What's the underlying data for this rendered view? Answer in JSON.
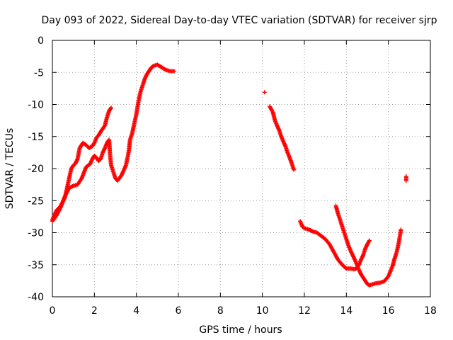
{
  "chart_data": {
    "type": "scatter",
    "title": "Day 093 of 2022, Sidereal Day-to-day VTEC variation (SDTVAR) for receiver sjrp",
    "xlabel": "GPS time / hours",
    "ylabel": "SDTVAR / TECUs",
    "xlim": [
      0,
      18
    ],
    "ylim": [
      -40,
      0
    ],
    "xticks": [
      0,
      2,
      4,
      6,
      8,
      10,
      12,
      14,
      16,
      18
    ],
    "yticks": [
      0,
      -5,
      -10,
      -15,
      -20,
      -25,
      -30,
      -35,
      -40
    ],
    "grid": true,
    "marker": "+",
    "series_color": "#ff0000",
    "segments": [
      {
        "name": "track-1",
        "points": [
          [
            0.0,
            -28.0
          ],
          [
            0.1,
            -27.2
          ],
          [
            0.2,
            -26.5
          ],
          [
            0.3,
            -26.2
          ],
          [
            0.4,
            -25.8
          ],
          [
            0.6,
            -24.5
          ],
          [
            0.7,
            -23.0
          ],
          [
            0.8,
            -21.5
          ],
          [
            0.9,
            -20.0
          ],
          [
            1.0,
            -19.5
          ],
          [
            1.1,
            -19.2
          ],
          [
            1.2,
            -18.5
          ],
          [
            1.3,
            -16.8
          ],
          [
            1.45,
            -16.0
          ],
          [
            1.6,
            -16.3
          ],
          [
            1.75,
            -16.8
          ],
          [
            1.9,
            -16.5
          ],
          [
            2.0,
            -16.0
          ],
          [
            2.1,
            -15.2
          ],
          [
            2.2,
            -14.8
          ],
          [
            2.35,
            -14.0
          ],
          [
            2.5,
            -13.3
          ],
          [
            2.6,
            -12.0
          ],
          [
            2.7,
            -11.0
          ],
          [
            2.8,
            -10.5
          ]
        ]
      },
      {
        "name": "track-2",
        "points": [
          [
            0.0,
            -28.2
          ],
          [
            0.2,
            -27.3
          ],
          [
            0.4,
            -26.0
          ],
          [
            0.6,
            -24.3
          ],
          [
            0.8,
            -23.0
          ],
          [
            1.0,
            -22.7
          ],
          [
            1.2,
            -22.5
          ],
          [
            1.4,
            -21.5
          ],
          [
            1.6,
            -19.8
          ],
          [
            1.7,
            -19.5
          ],
          [
            1.8,
            -19.3
          ],
          [
            1.9,
            -18.5
          ],
          [
            2.0,
            -18.0
          ],
          [
            2.1,
            -18.3
          ],
          [
            2.2,
            -18.8
          ],
          [
            2.3,
            -18.5
          ],
          [
            2.4,
            -17.5
          ],
          [
            2.5,
            -16.8
          ],
          [
            2.6,
            -16.0
          ],
          [
            2.7,
            -15.5
          ],
          [
            2.75,
            -18.0
          ],
          [
            2.8,
            -19.5
          ],
          [
            2.9,
            -20.5
          ],
          [
            3.0,
            -21.5
          ],
          [
            3.1,
            -21.9
          ],
          [
            3.3,
            -21.0
          ],
          [
            3.5,
            -19.5
          ],
          [
            3.6,
            -18.0
          ],
          [
            3.65,
            -17.0
          ],
          [
            3.7,
            -15.5
          ],
          [
            3.8,
            -14.5
          ],
          [
            3.9,
            -13.0
          ],
          [
            4.0,
            -11.5
          ],
          [
            4.1,
            -9.5
          ],
          [
            4.2,
            -8.0
          ],
          [
            4.3,
            -7.0
          ],
          [
            4.4,
            -6.0
          ],
          [
            4.5,
            -5.3
          ],
          [
            4.6,
            -4.8
          ],
          [
            4.7,
            -4.3
          ],
          [
            4.8,
            -4.0
          ],
          [
            4.9,
            -3.9
          ],
          [
            5.0,
            -3.8
          ],
          [
            5.2,
            -4.2
          ],
          [
            5.4,
            -4.6
          ],
          [
            5.6,
            -4.8
          ],
          [
            5.8,
            -4.8
          ]
        ]
      },
      {
        "name": "isolated-1",
        "points": [
          [
            10.1,
            -8.1
          ]
        ]
      },
      {
        "name": "track-3",
        "points": [
          [
            10.35,
            -10.3
          ],
          [
            10.5,
            -11.2
          ],
          [
            10.6,
            -12.5
          ],
          [
            10.7,
            -13.3
          ],
          [
            10.8,
            -14.0
          ],
          [
            10.9,
            -15.0
          ],
          [
            11.0,
            -15.8
          ],
          [
            11.1,
            -16.5
          ],
          [
            11.2,
            -17.5
          ],
          [
            11.3,
            -18.3
          ],
          [
            11.4,
            -19.2
          ],
          [
            11.5,
            -20.2
          ]
        ]
      },
      {
        "name": "track-4",
        "points": [
          [
            11.8,
            -28.2
          ],
          [
            11.9,
            -29.0
          ],
          [
            12.0,
            -29.3
          ],
          [
            12.2,
            -29.5
          ],
          [
            12.4,
            -29.8
          ],
          [
            12.6,
            -30.0
          ],
          [
            12.8,
            -30.5
          ],
          [
            13.0,
            -31.0
          ],
          [
            13.2,
            -31.8
          ],
          [
            13.4,
            -33.0
          ],
          [
            13.6,
            -34.2
          ],
          [
            13.8,
            -35.0
          ],
          [
            14.0,
            -35.6
          ],
          [
            14.2,
            -35.6
          ],
          [
            14.4,
            -35.7
          ],
          [
            14.5,
            -35.5
          ],
          [
            14.6,
            -35.0
          ],
          [
            14.7,
            -34.2
          ],
          [
            14.8,
            -33.5
          ],
          [
            14.9,
            -32.5
          ],
          [
            15.0,
            -31.8
          ],
          [
            15.1,
            -31.2
          ]
        ]
      },
      {
        "name": "track-5",
        "points": [
          [
            13.5,
            -25.8
          ],
          [
            13.6,
            -27.0
          ],
          [
            13.7,
            -28.0
          ],
          [
            13.8,
            -29.0
          ],
          [
            13.9,
            -30.0
          ],
          [
            14.0,
            -31.0
          ],
          [
            14.1,
            -32.0
          ],
          [
            14.2,
            -32.8
          ],
          [
            14.3,
            -33.5
          ],
          [
            14.4,
            -34.2
          ],
          [
            14.5,
            -35.0
          ],
          [
            14.6,
            -35.8
          ],
          [
            14.7,
            -36.5
          ],
          [
            14.8,
            -37.0
          ],
          [
            14.9,
            -37.5
          ],
          [
            15.0,
            -38.0
          ],
          [
            15.1,
            -38.2
          ],
          [
            15.2,
            -38.1
          ],
          [
            15.4,
            -37.9
          ],
          [
            15.6,
            -37.8
          ],
          [
            15.8,
            -37.6
          ],
          [
            15.9,
            -37.2
          ],
          [
            16.0,
            -36.8
          ],
          [
            16.1,
            -36.0
          ],
          [
            16.2,
            -35.2
          ],
          [
            16.3,
            -34.0
          ],
          [
            16.4,
            -33.0
          ],
          [
            16.5,
            -31.5
          ],
          [
            16.6,
            -29.5
          ]
        ]
      },
      {
        "name": "isolated-2",
        "points": [
          [
            16.85,
            -21.2
          ],
          [
            16.85,
            -21.9
          ]
        ]
      }
    ]
  }
}
